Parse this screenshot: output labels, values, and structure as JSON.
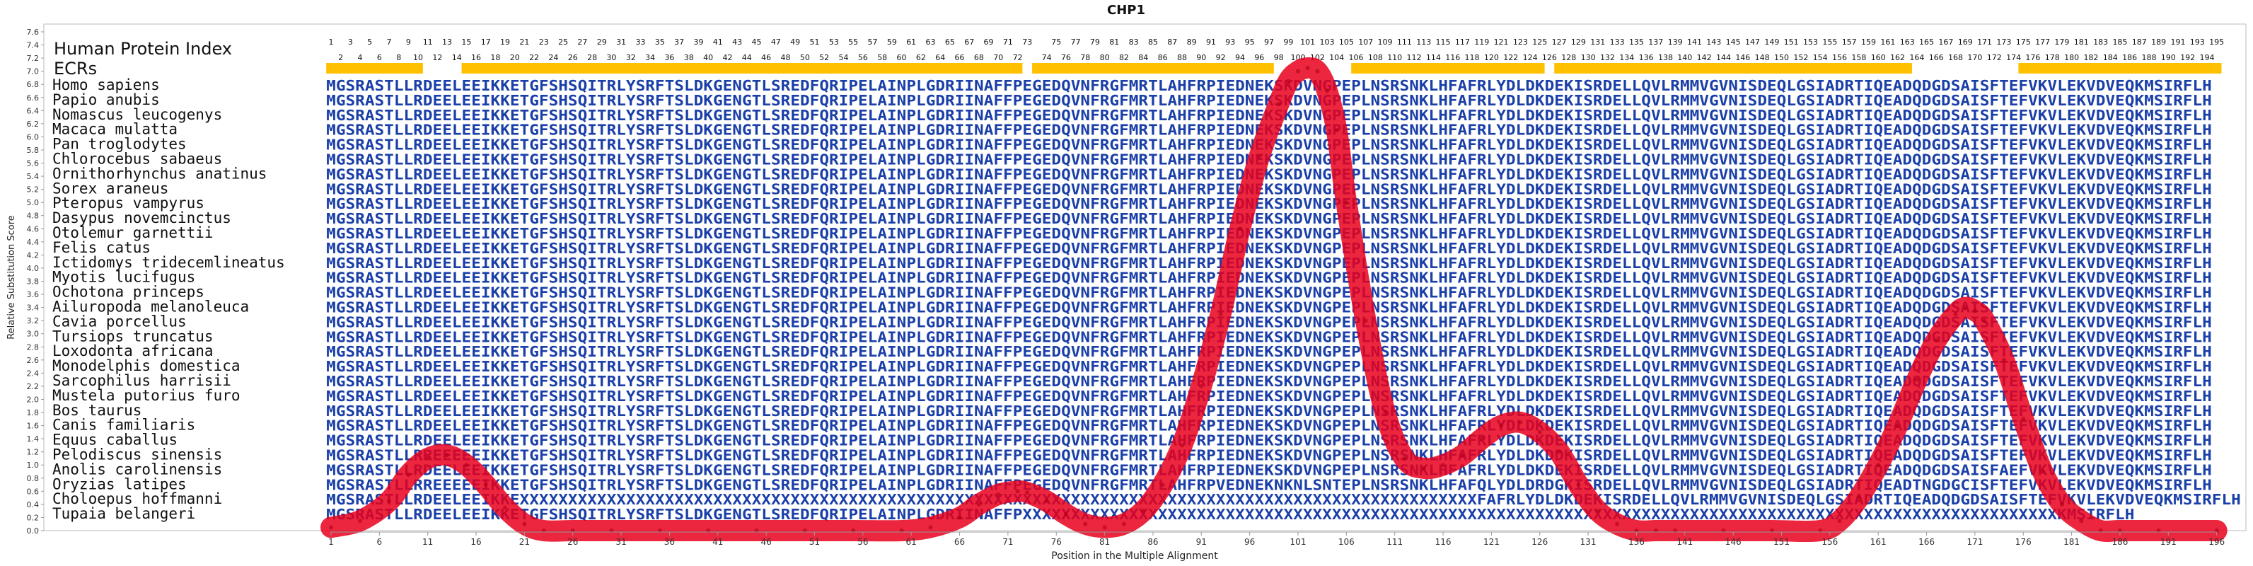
{
  "chart_data": {
    "type": "line",
    "title": "CHP1",
    "xlabel": "Position in the Multiple Alignment",
    "ylabel": "Relative Substitution Score",
    "xlim": [
      1,
      196
    ],
    "ylim": [
      0,
      7.6
    ],
    "y_ticks": [
      0.0,
      0.2,
      0.4,
      0.6,
      0.8,
      1.0,
      1.2,
      1.4,
      1.6,
      1.8,
      2.0,
      2.2,
      2.4,
      2.6,
      2.8,
      3.0,
      3.2,
      3.4,
      3.6,
      3.8,
      4.0,
      4.2,
      4.4,
      4.6,
      4.8,
      5.0,
      5.2,
      5.4,
      5.6,
      5.8,
      6.0,
      6.2,
      6.4,
      6.6,
      6.8,
      7.0,
      7.2,
      7.4,
      7.6
    ],
    "x_ticks": [
      1,
      6,
      11,
      16,
      21,
      26,
      31,
      36,
      41,
      46,
      51,
      56,
      61,
      66,
      71,
      76,
      81,
      86,
      91,
      96,
      101,
      106,
      111,
      116,
      121,
      126,
      131,
      136,
      141,
      146,
      151,
      156,
      161,
      166,
      171,
      176,
      181,
      186,
      191,
      196
    ],
    "human_index_label": "Human Protein Index",
    "ecr_label": "ECRs",
    "human_index": [
      "1",
      "2",
      "3",
      "4",
      "5",
      "6",
      "7",
      "8",
      "9",
      "10",
      "11",
      "12",
      "13",
      "14",
      "15",
      "16",
      "17",
      "18",
      "19",
      "20",
      "21",
      "22",
      "23",
      "24",
      "25",
      "26",
      "27",
      "28",
      "29",
      "30",
      "31",
      "32",
      "33",
      "34",
      "35",
      "36",
      "37",
      "38",
      "39",
      "40",
      "41",
      "42",
      "43",
      "44",
      "45",
      "46",
      "47",
      "48",
      "49",
      "50",
      "51",
      "52",
      "53",
      "54",
      "55",
      "56",
      "57",
      "58",
      "59",
      "60",
      "61",
      "62",
      "63",
      "64",
      "65",
      "66",
      "67",
      "68",
      "69",
      "70",
      "71",
      "72",
      "73",
      "",
      "74",
      "75",
      "76",
      "77",
      "78",
      "79",
      "80",
      "81",
      "82",
      "83",
      "84",
      "85",
      "86",
      "87",
      "88",
      "89",
      "90",
      "91",
      "92",
      "93",
      "94",
      "95",
      "96",
      "97",
      "98",
      "99",
      "100",
      "101",
      "102",
      "103",
      "104",
      "105",
      "106",
      "107",
      "108",
      "109",
      "110",
      "111",
      "112",
      "113",
      "114",
      "115",
      "116",
      "117",
      "118",
      "119",
      "120",
      "121",
      "122",
      "123",
      "124",
      "125",
      "126",
      "127",
      "128",
      "129",
      "130",
      "131",
      "132",
      "133",
      "134",
      "135",
      "136",
      "137",
      "138",
      "139",
      "140",
      "141",
      "142",
      "143",
      "144",
      "145",
      "146",
      "147",
      "148",
      "149",
      "150",
      "151",
      "152",
      "153",
      "154",
      "155",
      "156",
      "157",
      "158",
      "159",
      "160",
      "161",
      "162",
      "163",
      "164",
      "165",
      "166",
      "167",
      "168",
      "169",
      "170",
      "171",
      "172",
      "173",
      "174",
      "175",
      "176",
      "177",
      "178",
      "179",
      "180",
      "181",
      "182",
      "183",
      "184",
      "185",
      "186",
      "187",
      "188",
      "189",
      "190",
      "191",
      "192",
      "193",
      "194",
      "195"
    ],
    "ecr_segments": [
      [
        1,
        10
      ],
      [
        15,
        72
      ],
      [
        74,
        98
      ],
      [
        107,
        126
      ],
      [
        128,
        164
      ],
      [
        176,
        196
      ]
    ],
    "series": [
      {
        "color": "#e8001c",
        "x": [
          1,
          4,
          7,
          9,
          11,
          13,
          15,
          17,
          19,
          21,
          23,
          26,
          30,
          35,
          40,
          45,
          50,
          55,
          60,
          63,
          66,
          68,
          70,
          72,
          73,
          75,
          77,
          79,
          81,
          83,
          85,
          87,
          89,
          91,
          93,
          95,
          97,
          99,
          100,
          101,
          102,
          103,
          104,
          105,
          106,
          108,
          110,
          112,
          114,
          116,
          118,
          120,
          122,
          124,
          126,
          128,
          130,
          132,
          134,
          136,
          138,
          140,
          145,
          150,
          155,
          157,
          159,
          161,
          163,
          165,
          167,
          169,
          170,
          171,
          172,
          174,
          176,
          178,
          180,
          182,
          184,
          186,
          190,
          196
        ],
        "y": [
          0.05,
          0.15,
          0.45,
          0.85,
          1.1,
          1.15,
          1.0,
          0.7,
          0.35,
          0.1,
          0.0,
          0.0,
          0.0,
          0.0,
          0.0,
          0.0,
          0.0,
          0.0,
          0.0,
          0.05,
          0.2,
          0.4,
          0.55,
          0.6,
          0.58,
          0.45,
          0.25,
          0.1,
          0.05,
          0.1,
          0.3,
          0.7,
          1.3,
          2.2,
          3.3,
          4.6,
          5.7,
          6.5,
          6.85,
          7.0,
          7.05,
          7.0,
          6.7,
          6.1,
          5.0,
          3.2,
          1.8,
          1.1,
          0.95,
          1.0,
          1.15,
          1.4,
          1.6,
          1.65,
          1.5,
          1.2,
          0.7,
          0.3,
          0.1,
          0.0,
          0.0,
          0.0,
          0.0,
          0.0,
          0.0,
          0.15,
          0.5,
          1.0,
          1.6,
          2.3,
          2.9,
          3.3,
          3.4,
          3.35,
          3.2,
          2.6,
          1.7,
          0.9,
          0.4,
          0.15,
          0.0,
          0.0,
          0.0,
          0.0
        ]
      }
    ],
    "species": [
      "Homo sapiens",
      "Papio anubis",
      "Nomascus leucogenys",
      "Macaca mulatta",
      "Pan troglodytes",
      "Chlorocebus sabaeus",
      "Ornithorhynchus anatinus",
      "Sorex araneus",
      "Pteropus vampyrus",
      "Dasypus novemcinctus",
      "Otolemur garnettii",
      "Felis catus",
      "Ictidomys tridecemlineatus",
      "Myotis lucifugus",
      "Ochotona princeps",
      "Ailuropoda melanoleuca",
      "Cavia porcellus",
      "Tursiops truncatus",
      "Loxodonta africana",
      "Monodelphis domestica",
      "Sarcophilus harrisii",
      "Mustela putorius furo",
      "Bos taurus",
      "Canis familiaris",
      "Equus caballus",
      "Pelodiscus sinensis",
      "Anolis carolinensis",
      "Oryzias latipes",
      "Choloepus hoffmanni",
      "Tupaia belangeri"
    ],
    "sequences": [
      "MGSRASTLLRDEELEEIKKETGFSHSQITRLYSRFTSLDKGENGTLSREDFQRIPELAINPLGDRIINAFFPEGEDQVNFRGFMRTLAHFRPIEDNEKSKDVNGPEPLNSRSNKLHFAFRLYDLDKDEKISRDELLQVLRMMVGVNISDEQLGSIADRTIQEADQDGDSAISFTEFVKVLEKVDVEQKMSIRFLH",
      "MGSRASTLLRDEELEEIKKETGFSHSQITRLYSRFTSLDKGENGTLSREDFQRIPELAINPLGDRIINAFFPEGEDQVNFRGFMRTLAHFRPIEDNEKSKDVNGPEPLNSRSNKLHFAFRLYDLDKDEKISRDELLQVLRMMVGVNISDEQLGSIADRTIQEADQDGDSAISFTEFVKVLEKVDVEQKMSIRFLH",
      "MGSRASTLLRDEELEEIKKETGFSHSQITRLYSRFTSLDKGENGTLSREDFQRIPELAINPLGDRIINAFFPEGEDQVNFRGFMRTLAHFRPIEDNEKSKDVNGPEPLNSRSNKLHFAFRLYDLDKDEKISRDELLQVLRMMVGVNISDEQLGSIADRTIQEADQDGDSAISFTEFVKVLEKVDVEQKMSIRFLH",
      "MGSRASTLLRDEELEEIKKETGFSHSQITRLYSRFTSLDKGENGTLSREDFQRIPELAINPLGDRIINAFFPEGEDQVNFRGFMRTLAHFRPIEDNEKSKDVNGPEPLNSRSNKLHFAFRLYDLDKDEKISRDELLQVLRMMVGVNISDEQLGSIADRTIQEADQDGDSAISFTEFVKVLEKVDVEQKMSIRFLH",
      "MGSRASTLLRDEELEEIKKETGFSHSQITRLYSRFTSLDKGENGTLSREDFQRIPELAINPLGDRIINAFFPEGEDQVNFRGFMRTLAHFRPIEDNEKSKDVNGPEPLNSRSNKLHFAFRLYDLDKDEKISRDELLQVLRMMVGVNISDEQLGSIADRTIQEADQDGDSAISFTEFVKVLEKVDVEQKMSIRFLH",
      "MGSRASTLLRDEELEEIKKETGFSHSQITRLYSRFTSLDKGENGTLSREDFQRIPELAINPLGDRIINAFFPEGEDQVNFRGFMRTLAHFRPIEDNEKSKDVNGPEPLNSRSNKLHFAFRLYDLDKDEKISRDELLQVLRMMVGVNISDEQLGSIADRTIQEADQDGDSAISFTEFVKVLEKVDVEQKMSIRFLH",
      "MGSRASTLLRDEELEEIKKETGFSHSQITRLYSRFTSLDKGENGTLSREDFQRIPELAINPLGDRIINAFFPEGEDQVNFRGFMRTLAHFRPIEDNEKSKDVNGPEPLNSRSNKLHFAFRLYDLDKDEKISRDELLQVLRMMVGVNISDEQLGSIADRTIQEADQDGDSAISFTEFVKVLEKVDVEQKMSIRFLH",
      "MGSRASTLLRDEELEEIKKETGFSHSQITRLYSRFTSLDKGENGTLSREDFQRIPELAINPLGDRIINAFFPEGEDQVNFRGFMRTLAHFRPIEDNEKSKDVNGPEPLNSRSNKLHFAFRLYDLDKDEKISRDELLQVLRMMVGVNISDEQLGSIADRTIQEADQDGDSAISFTEFVKVLEKVDVEQKMSIRFLH",
      "MGSRASTLLRDEELEEIKKETGFSHSQITRLYSRFTSLDKGENGTLSREDFQRIPELAINPLGDRIINAFFPEGEDQVNFRGFMRTLAHFRPIEDNEKSKDVNGPEPLNSRSNKLHFAFRLYDLDKDEKISRDELLQVLRMMVGVNISDEQLGSIADRTIQEADQDGDSAISFTEFVKVLEKVDVEQKMSIRFLH",
      "MGSRASTLLRDEELEEIKKETGFSHSQITRLYSRFTSLDKGENGTLSREDFQRIPELAINPLGDRIINAFFPEGEDQVNFRGFMRTLAHFRPIEDNEKSKDVNGPEPLNSRSNKLHFAFRLYDLDKDEKISRDELLQVLRMMVGVNISDEQLGSIADRTIQEADQDGDSAISFTEFVKVLEKVDVEQKMSIRFLH",
      "MGSRASTLLRDEELEEIKKETGFSHSQITRLYSRFTSLDKGENGTLSREDFQRIPELAINPLGDRIINAFFPEGEDQVNFRGFMRTLAHFRPIEDNEKSKDVNGPEPLNSRSNKLHFAFRLYDLDKDEKISRDELLQVLRMMVGVNISDEQLGSIADRTIQEADQDGDSAISFTEFVKVLEKVDVEQKMSIRFLH",
      "MGSRASTLLRDEELEEIKKETGFSHSQITRLYSRFTSLDKGENGTLSREDFQRIPELAINPLGDRIINAFFPEGEDQVNFRGFMRTLAHFRPIEDNEKSKDVNGPEPLNSRSNKLHFAFRLYDLDKDEKISRDELLQVLRMMVGVNISDEQLGSIADRTIQEADQDGDSAISFTEFVKVLEKVDVEQKMSIRFLH",
      "MGSRASTLLRDEELEEIKKETGFSHSQITRLYSRFTSLDKGENGTLSREDFQRIPELAINPLGDRIINAFFPEGEDQVNFRGFMRTLAHFRPIEDNEKSKDVNGPEPLNSRSNKLHFAFRLYDLDKDEKISRDELLQVLRMMVGVNISDEQLGSIADRTIQEADQDGDSAISFTEFVKVLEKVDVEQKMSIRFLH",
      "MGSRASTLLRDEELEEIKKETGFSHSQITRLYSRFTSLDKGENGTLSREDFQRIPELAINPLGDRIINAFFPEGEDQVNFRGFMRTLAHFRPIEDNEKSKDVNGPEPLNSRSNKLHFAFRLYDLDKDEKISRDELLQVLRMMVGVNISDEQLGSIADRTIQEADQDGDSAISFTEFVKVLEKVDVEQKMSIRFLH",
      "MGSRASTLLRDEELEEIKKETGFSHSQITRLYSRFTSLDKGENGTLSREDFQRIPELAINPLGDRIINAFFPEGEDQVNFRGFMRTLAHFRPIEDNEKSKDVNGPEPLNSRSNKLHFAFRLYDLDKDEKISRDELLQVLRMMVGVNISDEQLGSIADRTIQEADQDGDSAISFTEFVKVLEKVDVEQKMSIRFLH",
      "MGSRASTLLRDEELEEIKKETGFSHSQITRLYSRFTSLDKGENGTLSREDFQRIPELAINPLGDRIINAFFPEGEDQVNFRGFMRTLAHFRPIEDNEKSKDVNGPEPLNSRSNKLHFAFRLYDLDKDEKISRDELLQVLRMMVGVNISDEQLGSIADRTIQEADQDGDSAISFTEFVKVLEKVDVEQKMSIRFLH",
      "MGSRASTLLRDEELEEIKKETGFSHSQITRLYSRFTSLDKGENGTLSREDFQRIPELAINPLGDRIINAFFPEGEDQVNFRGFMRTLAHFRPIEDNEKSKDVNGPEPLNSRSNKLHFAFRLYDLDKDEKISRDELLQVLRMMVGVNISDEQLGSIADRTIQEADQDGDSAISFTEFVKVLEKVDVEQKMSIRFLH",
      "MGSRASTLLRDEELEEIKKETGFSHSQITRLYSRFTSLDKGENGTLSREDFQRIPELAINPLGDRIINAFFPEGEDQVNFRGFMRTLAHFRPIEDNEKSKDVNGPEPLNSRSNKLHFAFRLYDLDKDEKISRDELLQVLRMMVGVNISDEQLGSIADRTIQEADQDGDSAISFTEFVKVLEKVDVEQKMSIRFLH",
      "MGSRASTLLRDEELEEIKKETGFSHSQITRLYSRFTSLDKGENGTLSREDFQRIPELAINPLGDRIINAFFPEGEDQVNFRGFMRTLAHFRPIEDNEKSKDVNGPEPLNSRSNKLHFAFRLYDLDKDEKISRDELLQVLRMMVGVNISDEQLGSIADRTIQEADQDGDSAISFTEFVKVLEKVDVEQKMSIRFLH",
      "MGSRASTLLRDEELEEIKKETGFSHSQITRLYSRFTSLDKGENGTLSREDFQRIPELAINPLGDRIINAFFPEGEDQVNFRGFMRTLAHFRPIEDNEKSKDVNGPEPLNSRSNKLHFAFRLYDLDKDEKISRDELLQVLRMMVGVNISDEQLGSIADRTIQEADQDGDSAISFTEFVKVLEKVDVEQKMSIRFLH",
      "MGSRASTLLRDEELEEIKKETGFSHSQITRLYSRFTSLDKGENGTLSREDFQRIPELAINPLGDRIINAFFPEGEDQVNFRGFMRTLAHFRPIEDNEKSKDVNGPEPLNSRSNKLHFAFRLYDLDKDEKISRDELLQVLRMMVGVNISDEQLGSIADRTIQEADQDGDSAISFTEFVKVLEKVDVEQKMSIRFLH",
      "MGSRASTLLRDEELEEIKKETGFSHSQITRLYSRFTSLDKGENGTLSREDFQRIPELAINPLGDRIINAFFPEGEDQVNFRGFMRTLAHFRPIEDNEKSKDVNGPEPLNSRSNKLHFAFRLYDLDKDEKISRDELLQVLRMMVGVNISDEQLGSIADRTIQEADQDGDSAISFTEFVKVLEKVDVEQKMSIRFLH",
      "MGSRASTLLRDEELEEIKKETGFSHSQITRLYSRFTSLDKGENGTLSREDFQRIPELAINPLGDRIINAFFPEGEDQVNFRGFMRTLAHFRPIEDNEKSKDVNGPEPLNSRSNKLHFAFRLYDLDKDEKISRDELLQVLRMMVGVNISDEQLGSIADRTIQEADQDGDSAISFTEFVKVLEKVDVEQKMSIRFLH",
      "MGSRASTLLRDEELEEIKKETGFSHSQITRLYSRFTSLDKGENGTLSREDFQRIPELAINPLGDRIINAFFPEGEDQVNFRGFMRTLAHFRPIEDNEKSKDVNGPEPLNSRSNKLHFAFRLYDLDKDEKISRDELLQVLRMMVGVNISDEQLGSIADRTIQEADQDGDSAISFTEFVKVLEKVDVEQKMSIRFLH",
      "MGSRASTLLRDEELEEIKKETGFSHSQITRLYSRFTSLDKGENGTLSREDFQRIPELAINPLGDRIINAFFPEGEDQVNFRGFMRTLAHFRPIEDNEKSKDVNGPEPLNSRSNKLHFAFRLYDLDKDEKISRDELLQVLRMMVGVNISDEQLGSIADRTIQEADQDGDSAISFTEFVKVLEKVDVEQKMSIRFLH",
      "MGSRASTLLRREEEEEIKKETGFSHSQITRLYSRFTSLDKGENGTLSREDFQRIPELAINPLGDRIINAFFPEGEDQVNFRGFMRTLAHFRPIEDNEKSKDVNGPEPLNSRSNKLHFAFRLYDLDKDDKISRDELLQVLRMMVGVNISDEQLGSIADRTIQEADQDGDSAISFTEFVKVLEKVDVEQKMSIRFLH",
      "MGSRASTLLRDEELEEIKKETGFSHSQITRLYSRFTSLDKGENGTLSREDFQRIPELAINPLGDRIINAFFPEGEDQVNFRGFMRTLAHFRPIEDNEKSKDVNGPEPLNSRSNKLHFAFRLYDLDKDEKISRDELLQVLRMMVGVNISDEQLGSIADRTIQEADQDGDSAISFAEFVKVLEKVDVEQKMSIRFLH",
      "MGSRASTLLRREEEEEIKKETGFSHSQITRLYSRFTSLDKGENGTLSREDFQRIPELAINPLGDRIINAFFPEGEDQVNFRGFMRTLAHFRPVEDNEKNKNLSNTEPLNSRSNKLHFAFQLYDLDRDGKISRDELLQVLRMMVGVNISDEQLGSIADRTIQEADTNGDGCISFTEFVKVLEKVDVEQKMSIRFLH",
      "MGSRASTLLRDEELEEIKKEXXXXXXXXXXXXXXXXXXXXXXXXXXXXXXXXXXXXXXXXXXXXXXXXXXXXXXXXXXXXXXXXXXXXXXXXXXXXXXXXXXXXXXXXXXXXXXXXXXXFAFRLYDLDKDEKISRDELLQVLRMMVGVNISDEQLGSIADRTIQEADQDGDSAISFTEFVKVLEKVDVEQKMSIRFLH",
      "MGSRASTLLRDEELEEIKKETGFSHSQITRLYSRFTSLDKGENGTLSREDFQRIPELAINPLGDRIINAFFPXXXXXXXXXXXXXXXXXXXXXXXXXXXXXXXXXXXXXXXXXXXXXXXXXXXXXXXXXXXXXXXXXXXXXXXXXXXXXXXXXXXXXXXXXXXXXXXXXXXXXXXXXXXKMSIRFLH"
    ]
  }
}
